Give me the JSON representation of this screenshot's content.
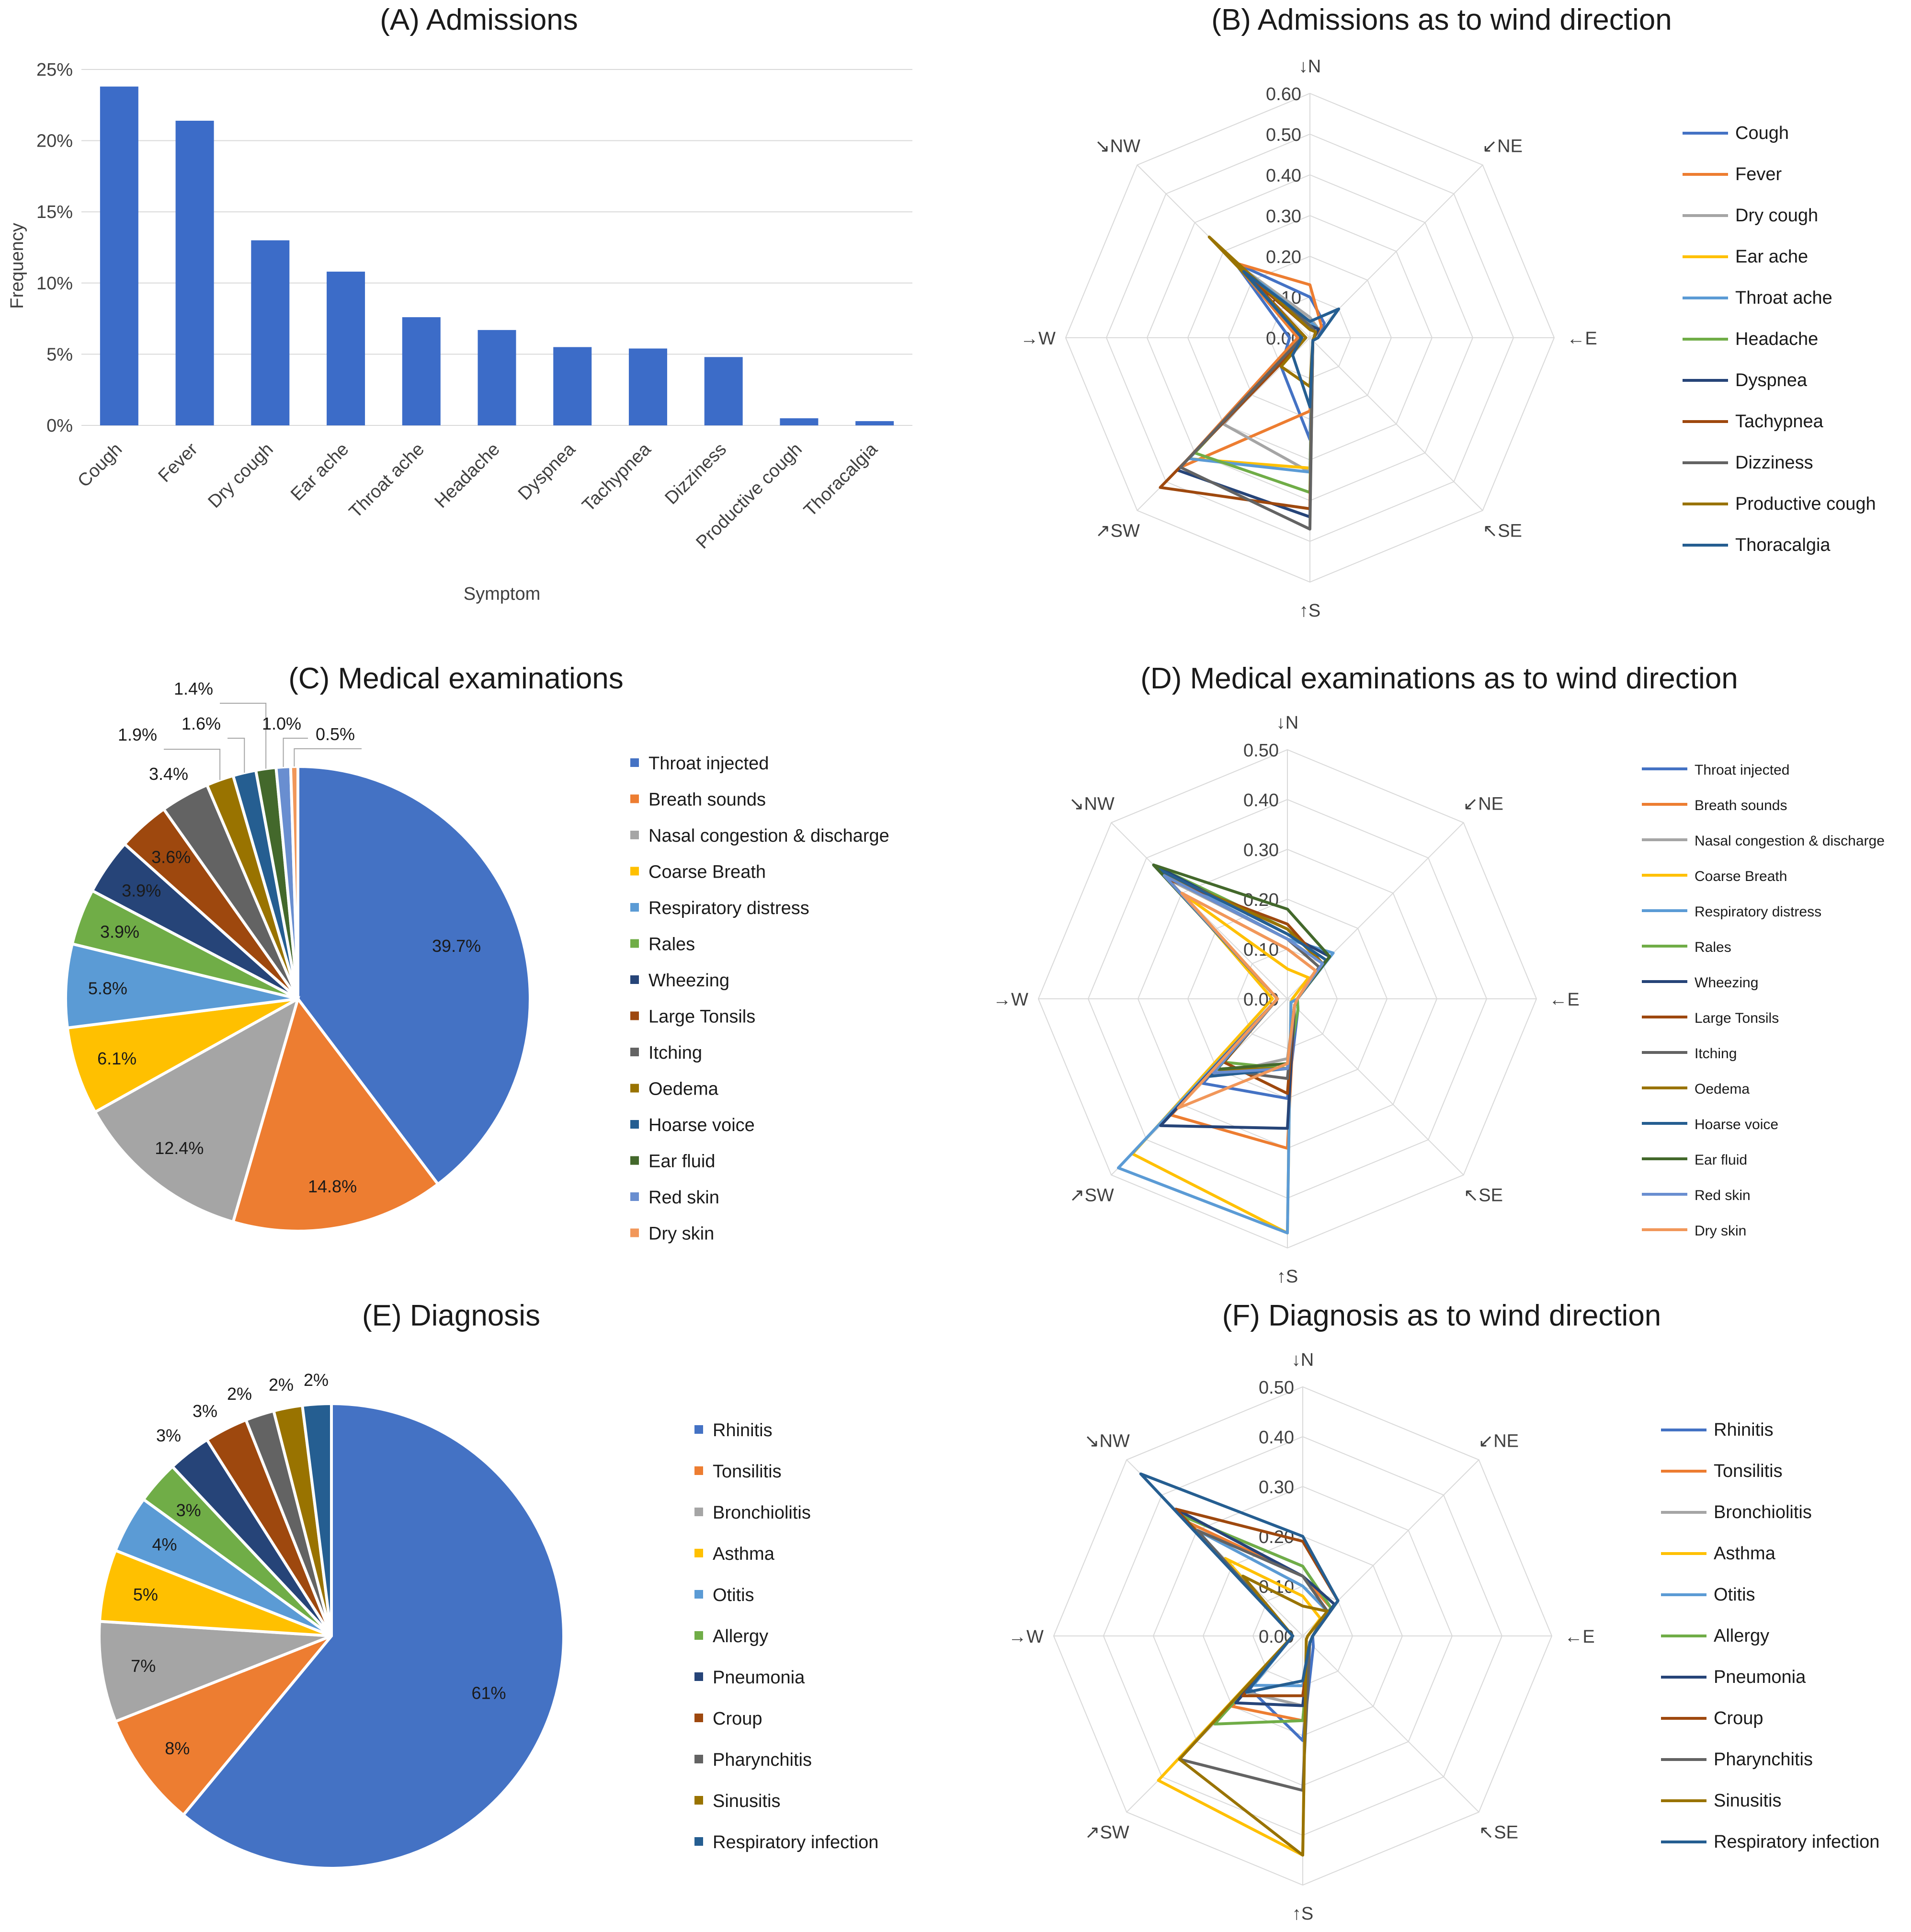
{
  "colors": {
    "palette": [
      "#4472C4",
      "#ED7D31",
      "#A5A5A5",
      "#FFC000",
      "#5B9BD5",
      "#70AD47",
      "#264478",
      "#9E480E",
      "#636363",
      "#997300",
      "#255E91",
      "#43682B",
      "#698ED0",
      "#F1975A"
    ],
    "bar": "#3C6CC8",
    "grid": "#D9D9D9"
  },
  "chart_data": [
    {
      "id": "A",
      "type": "bar",
      "title": "(A) Admissions",
      "xlabel": "Symptom",
      "ylabel": "Frequency",
      "ylim": [
        0,
        25
      ],
      "yticks": [
        "0%",
        "5%",
        "10%",
        "15%",
        "20%",
        "25%"
      ],
      "categories": [
        "Cough",
        "Fever",
        "Dry cough",
        "Ear ache",
        "Throat ache",
        "Headache",
        "Dyspnea",
        "Tachypnea",
        "Dizziness",
        "Productive cough",
        "Thoracalgia"
      ],
      "values": [
        23.8,
        21.4,
        13.0,
        10.8,
        7.6,
        6.7,
        5.5,
        5.4,
        4.8,
        0.5,
        0.3
      ]
    },
    {
      "id": "B",
      "type": "radar",
      "title": "(B) Admissions as to wind direction",
      "directions": [
        "↓N",
        "↙NE",
        "←E",
        "↖SE",
        "↑S",
        "↗SW",
        "→W",
        "↘NW"
      ],
      "rticks": [
        "0.00",
        "0.10",
        "0.20",
        "0.30",
        "0.40",
        "0.50",
        "0.60"
      ],
      "rmax": 0.6,
      "series": [
        {
          "name": "Cough",
          "values": [
            0.1,
            0.05,
            0.02,
            0.01,
            0.25,
            0.1,
            0.05,
            0.26
          ]
        },
        {
          "name": "Fever",
          "values": [
            0.13,
            0.04,
            0.01,
            0.01,
            0.18,
            0.45,
            0.03,
            0.26
          ]
        },
        {
          "name": "Dry cough",
          "values": [
            0.05,
            0.03,
            0.01,
            0.01,
            0.33,
            0.3,
            0.02,
            0.26
          ]
        },
        {
          "name": "Ear ache",
          "values": [
            0.04,
            0.03,
            0.01,
            0.01,
            0.32,
            0.42,
            0.02,
            0.26
          ]
        },
        {
          "name": "Throat ache",
          "values": [
            0.04,
            0.03,
            0.01,
            0.01,
            0.33,
            0.42,
            0.02,
            0.26
          ]
        },
        {
          "name": "Headache",
          "values": [
            0.03,
            0.03,
            0.01,
            0.01,
            0.38,
            0.4,
            0.02,
            0.24
          ]
        },
        {
          "name": "Dyspnea",
          "values": [
            0.03,
            0.03,
            0.01,
            0.01,
            0.44,
            0.46,
            0.02,
            0.23
          ]
        },
        {
          "name": "Tachypnea",
          "values": [
            0.02,
            0.02,
            0.01,
            0.01,
            0.42,
            0.52,
            0.01,
            0.22
          ]
        },
        {
          "name": "Dizziness",
          "values": [
            0.03,
            0.02,
            0.01,
            0.01,
            0.47,
            0.45,
            0.02,
            0.25
          ]
        },
        {
          "name": "Productive cough",
          "values": [
            0.02,
            0.02,
            0.01,
            0.01,
            0.12,
            0.1,
            0.01,
            0.35
          ]
        },
        {
          "name": "Thoracalgia",
          "values": [
            0.04,
            0.1,
            0.02,
            0.01,
            0.17,
            0.06,
            0.02,
            0.23
          ]
        }
      ]
    },
    {
      "id": "C",
      "type": "pie",
      "title": "(C) Medical examinations",
      "categories": [
        "Throat injected",
        "Breath sounds",
        "Nasal congestion & discharge",
        "Coarse Breath",
        "Respiratory distress",
        "Rales",
        "Wheezing",
        "Large Tonsils",
        "Itching",
        "Oedema",
        "Hoarse voice",
        "Ear fluid",
        "Red skin",
        "Dry skin"
      ],
      "values": [
        39.7,
        14.8,
        12.4,
        6.1,
        5.8,
        3.9,
        3.9,
        3.6,
        3.4,
        1.9,
        1.6,
        1.4,
        1.0,
        0.5
      ],
      "labels": [
        "39.7%",
        "14.8%",
        "12.4%",
        "6.1%",
        "5.8%",
        "3.9%",
        "3.9%",
        "3.6%",
        "3.4%",
        "1.9%",
        "1.6%",
        "1.4%",
        "1.0%",
        "0.5%"
      ]
    },
    {
      "id": "D",
      "type": "radar",
      "title": "(D) Medical examinations as to wind direction",
      "directions": [
        "↓N",
        "↙NE",
        "←E",
        "↖SE",
        "↑S",
        "↗SW",
        "→W",
        "↘NW"
      ],
      "rticks": [
        "0.00",
        "0.10",
        "0.20",
        "0.30",
        "0.40",
        "0.50"
      ],
      "rmax": 0.5,
      "series": [
        {
          "name": "Throat injected",
          "values": [
            0.14,
            0.1,
            0.02,
            0.03,
            0.2,
            0.24,
            0.02,
            0.36
          ]
        },
        {
          "name": "Breath sounds",
          "values": [
            0.1,
            0.08,
            0.02,
            0.02,
            0.3,
            0.33,
            0.02,
            0.3
          ]
        },
        {
          "name": "Nasal congestion & discharge",
          "values": [
            0.12,
            0.1,
            0.02,
            0.02,
            0.12,
            0.22,
            0.02,
            0.34
          ]
        },
        {
          "name": "Coarse Breath",
          "values": [
            0.06,
            0.06,
            0.01,
            0.01,
            0.47,
            0.44,
            0.03,
            0.3
          ]
        },
        {
          "name": "Respiratory distress",
          "values": [
            0.12,
            0.13,
            0.02,
            0.01,
            0.47,
            0.48,
            0.02,
            0.36
          ]
        },
        {
          "name": "Rales",
          "values": [
            0.14,
            0.1,
            0.02,
            0.03,
            0.14,
            0.18,
            0.02,
            0.38
          ]
        },
        {
          "name": "Wheezing",
          "values": [
            0.13,
            0.12,
            0.02,
            0.02,
            0.26,
            0.36,
            0.02,
            0.38
          ]
        },
        {
          "name": "Large Tonsils",
          "values": [
            0.15,
            0.1,
            0.02,
            0.02,
            0.19,
            0.18,
            0.02,
            0.34
          ]
        },
        {
          "name": "Itching",
          "values": [
            0.12,
            0.09,
            0.02,
            0.02,
            0.16,
            0.2,
            0.02,
            0.35
          ]
        },
        {
          "name": "Oedema",
          "values": [
            0.14,
            0.1,
            0.02,
            0.02,
            0.14,
            0.2,
            0.02,
            0.36
          ]
        },
        {
          "name": "Hoarse voice",
          "values": [
            0.13,
            0.11,
            0.02,
            0.02,
            0.14,
            0.22,
            0.02,
            0.37
          ]
        },
        {
          "name": "Ear fluid",
          "values": [
            0.18,
            0.12,
            0.02,
            0.02,
            0.13,
            0.2,
            0.02,
            0.38
          ]
        },
        {
          "name": "Red skin",
          "values": [
            0.12,
            0.1,
            0.02,
            0.02,
            0.14,
            0.21,
            0.02,
            0.35
          ]
        },
        {
          "name": "Dry skin",
          "values": [
            0.1,
            0.08,
            0.02,
            0.02,
            0.13,
            0.31,
            0.02,
            0.3
          ]
        }
      ]
    },
    {
      "id": "E",
      "type": "pie",
      "title": "(E) Diagnosis",
      "categories": [
        "Rhinitis",
        "Tonsilitis",
        "Bronchiolitis",
        "Asthma",
        "Otitis",
        "Allergy",
        "Pneumonia",
        "Croup",
        "Pharynchitis",
        "Sinusitis",
        "Respiratory infection"
      ],
      "values": [
        61,
        8,
        7,
        5,
        4,
        3,
        3,
        3,
        2,
        2,
        2
      ],
      "labels": [
        "61%",
        "8%",
        "7%",
        "5%",
        "4%",
        "3%",
        "3%",
        "3%",
        "2%",
        "2%",
        "2%"
      ]
    },
    {
      "id": "F",
      "type": "radar",
      "title": "(F) Diagnosis as to wind direction",
      "directions": [
        "↓N",
        "↙NE",
        "←E",
        "↖SE",
        "↑S",
        "↗SW",
        "→W",
        "↘NW"
      ],
      "rticks": [
        "0.00",
        "0.10",
        "0.20",
        "0.30",
        "0.40",
        "0.50"
      ],
      "rmax": 0.5,
      "series": [
        {
          "name": "Rhinitis",
          "values": [
            0.14,
            0.08,
            0.02,
            0.03,
            0.21,
            0.15,
            0.02,
            0.34
          ]
        },
        {
          "name": "Tonsilitis",
          "values": [
            0.12,
            0.08,
            0.02,
            0.02,
            0.17,
            0.2,
            0.02,
            0.32
          ]
        },
        {
          "name": "Bronchiolitis",
          "values": [
            0.1,
            0.07,
            0.02,
            0.02,
            0.14,
            0.16,
            0.02,
            0.3
          ]
        },
        {
          "name": "Asthma",
          "values": [
            0.08,
            0.05,
            0.01,
            0.01,
            0.44,
            0.41,
            0.02,
            0.22
          ]
        },
        {
          "name": "Otitis",
          "values": [
            0.1,
            0.07,
            0.02,
            0.02,
            0.1,
            0.14,
            0.02,
            0.3
          ]
        },
        {
          "name": "Allergy",
          "values": [
            0.14,
            0.08,
            0.02,
            0.02,
            0.17,
            0.25,
            0.02,
            0.34
          ]
        },
        {
          "name": "Pneumonia",
          "values": [
            0.12,
            0.09,
            0.02,
            0.02,
            0.14,
            0.19,
            0.02,
            0.36
          ]
        },
        {
          "name": "Croup",
          "values": [
            0.19,
            0.1,
            0.02,
            0.02,
            0.12,
            0.17,
            0.02,
            0.36
          ]
        },
        {
          "name": "Pharynchitis",
          "values": [
            0.12,
            0.07,
            0.02,
            0.02,
            0.31,
            0.35,
            0.02,
            0.3
          ]
        },
        {
          "name": "Sinusitis",
          "values": [
            0.06,
            0.07,
            0.01,
            0.01,
            0.44,
            0.35,
            0.02,
            0.17
          ]
        },
        {
          "name": "Respiratory infection",
          "values": [
            0.2,
            0.1,
            0.02,
            0.02,
            0.09,
            0.16,
            0.02,
            0.46
          ]
        }
      ]
    }
  ]
}
